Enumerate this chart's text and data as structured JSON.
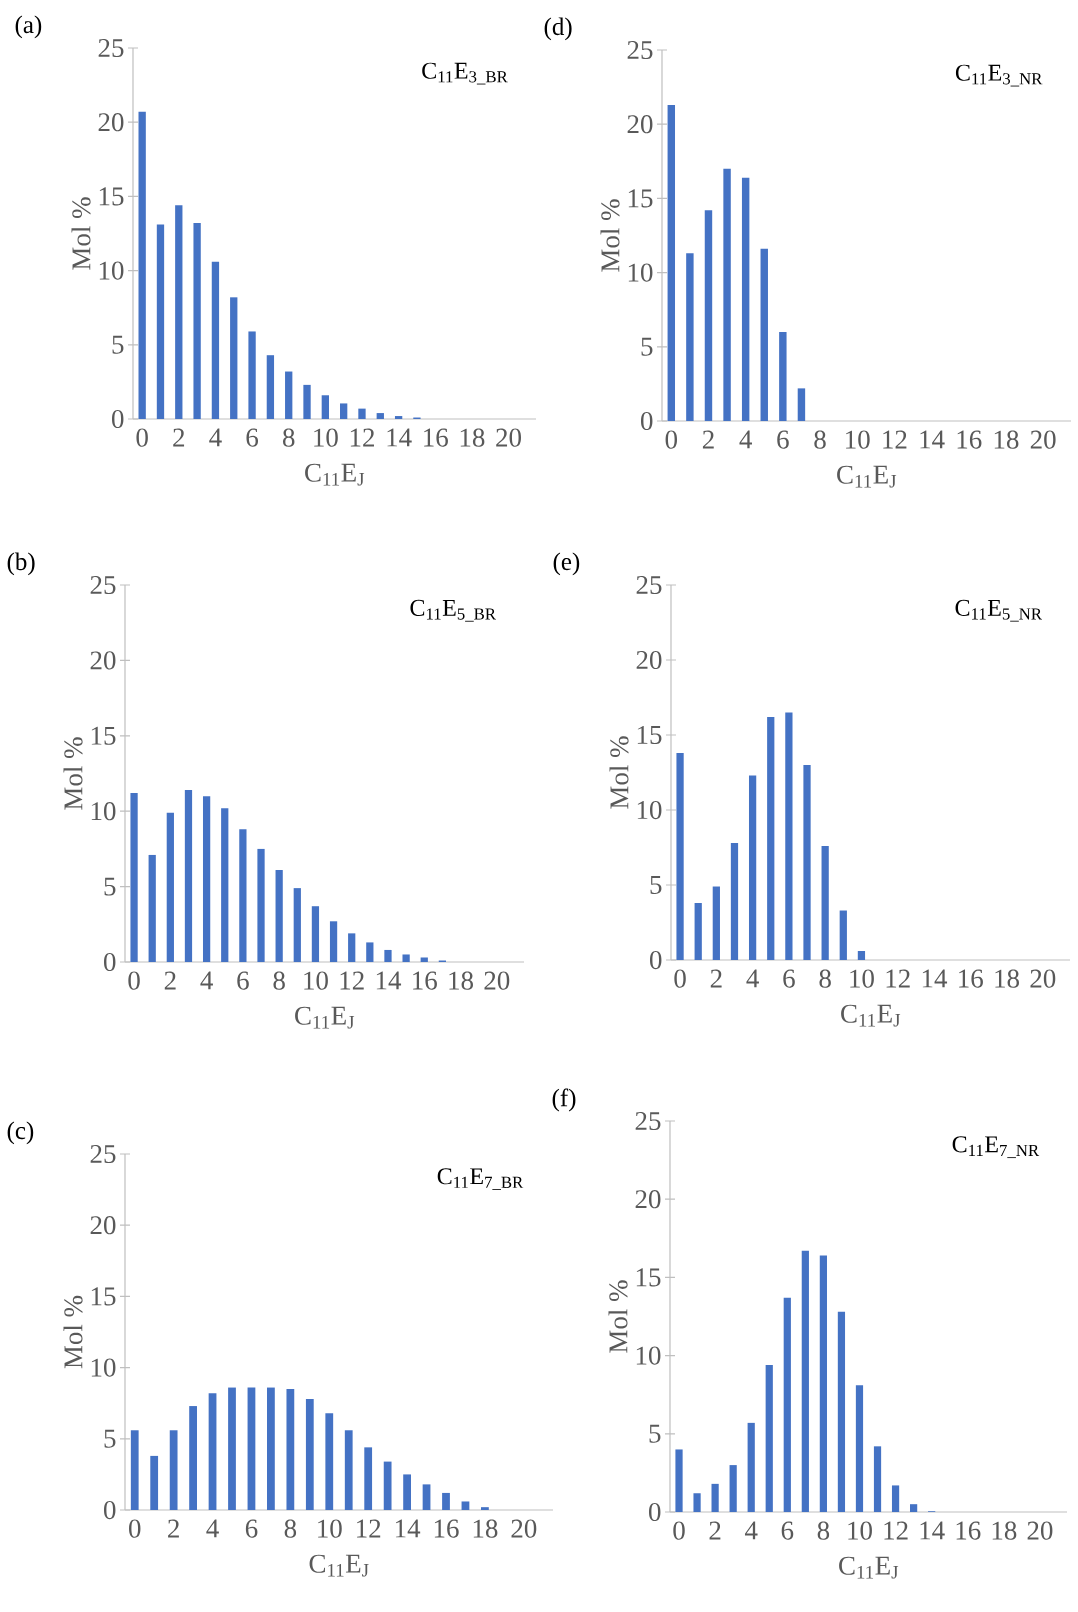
{
  "chart_data": [
    {
      "type": "bar",
      "title": "C$_{11}$E$_{3_BR}$",
      "xlabel": "C$_{11}$E$_{J}$",
      "ylabel": "Mol %",
      "annotations": [
        "(a)"
      ],
      "color": "#4472c4",
      "categories": [
        "0",
        null,
        "2",
        null,
        "4",
        null,
        "6",
        null,
        "8",
        null,
        "10",
        null,
        "12",
        null,
        "14",
        null,
        "16",
        null,
        "18",
        null,
        "20",
        null
      ],
      "values": [
        20.7,
        13.1,
        14.4,
        13.2,
        10.6,
        8.2,
        5.9,
        4.3,
        3.2,
        2.3,
        1.6,
        1.05,
        0.7,
        0.4,
        0.2,
        0.1,
        0,
        0,
        0,
        0,
        0,
        0
      ],
      "ylim": [
        0,
        25
      ],
      "yticks": [
        0,
        5,
        10,
        15,
        20,
        25
      ]
    },
    {
      "type": "bar",
      "title": "C$_{11}$E$_{3_NR}$",
      "xlabel": "C$_{11}$E$_{J}$",
      "ylabel": "Mol %",
      "annotations": [
        "(d)"
      ],
      "color": "#4472c4",
      "categories": [
        "0",
        null,
        "2",
        null,
        "4",
        null,
        "6",
        null,
        "8",
        null,
        "10",
        null,
        "12",
        null,
        "14",
        null,
        "16",
        null,
        "18",
        null,
        "20",
        null
      ],
      "values": [
        21.3,
        11.3,
        14.2,
        17.0,
        16.4,
        11.6,
        6.0,
        2.2,
        0,
        0,
        0,
        0,
        0,
        0,
        0,
        0,
        0,
        0,
        0,
        0,
        0,
        0
      ],
      "ylim": [
        0,
        25
      ],
      "yticks": [
        0,
        5,
        10,
        15,
        20,
        25
      ]
    },
    {
      "type": "bar",
      "title": "C$_{11}$E$_{5_BR}$",
      "xlabel": "C$_{11}$E$_{J}$",
      "ylabel": "Mol %",
      "annotations": [
        "(b)"
      ],
      "color": "#4472c4",
      "categories": [
        "0",
        null,
        "2",
        null,
        "4",
        null,
        "6",
        null,
        "8",
        null,
        "10",
        null,
        "12",
        null,
        "14",
        null,
        "16",
        null,
        "18",
        null,
        "20",
        null
      ],
      "values": [
        11.2,
        7.1,
        9.9,
        11.4,
        11.0,
        10.2,
        8.8,
        7.5,
        6.1,
        4.9,
        3.7,
        2.7,
        1.9,
        1.3,
        0.8,
        0.5,
        0.3,
        0.1,
        0,
        0,
        0,
        0
      ],
      "ylim": [
        0,
        25
      ],
      "yticks": [
        0,
        5,
        10,
        15,
        20,
        25
      ]
    },
    {
      "type": "bar",
      "title": "C$_{11}$E$_{5_NR}$",
      "xlabel": "C$_{11}$E$_{J}$",
      "ylabel": "Mol %",
      "annotations": [
        "(e)"
      ],
      "color": "#4472c4",
      "categories": [
        "0",
        null,
        "2",
        null,
        "4",
        null,
        "6",
        null,
        "8",
        null,
        "10",
        null,
        "12",
        null,
        "14",
        null,
        "16",
        null,
        "18",
        null,
        "20",
        null
      ],
      "values": [
        13.8,
        3.8,
        4.9,
        7.8,
        12.3,
        16.2,
        16.5,
        13.0,
        7.6,
        3.3,
        0.6,
        0,
        0,
        0,
        0,
        0,
        0,
        0,
        0,
        0,
        0,
        0
      ],
      "ylim": [
        0,
        25
      ],
      "yticks": [
        0,
        5,
        10,
        15,
        20,
        25
      ]
    },
    {
      "type": "bar",
      "title": "C$_{11}$E$_{7_BR}$",
      "xlabel": "C$_{11}$E$_{J}$",
      "ylabel": "Mol %",
      "annotations": [
        "(c)"
      ],
      "color": "#4472c4",
      "categories": [
        "0",
        null,
        "2",
        null,
        "4",
        null,
        "6",
        null,
        "8",
        null,
        "10",
        null,
        "12",
        null,
        "14",
        null,
        "16",
        null,
        "18",
        null,
        "20",
        null
      ],
      "values": [
        5.6,
        3.8,
        5.6,
        7.3,
        8.2,
        8.6,
        8.6,
        8.6,
        8.5,
        7.8,
        6.8,
        5.6,
        4.4,
        3.4,
        2.5,
        1.8,
        1.2,
        0.6,
        0.2,
        0,
        0,
        0
      ],
      "ylim": [
        0,
        25
      ],
      "yticks": [
        0,
        5,
        10,
        15,
        20,
        25
      ]
    },
    {
      "type": "bar",
      "title": "C$_{11}$E$_{7_NR}$",
      "xlabel": "C$_{11}$E$_{J}$",
      "ylabel": "Mol %",
      "annotations": [
        "(f)"
      ],
      "color": "#4472c4",
      "categories": [
        "0",
        null,
        "2",
        null,
        "4",
        null,
        "6",
        null,
        "8",
        null,
        "10",
        null,
        "12",
        null,
        "14",
        null,
        "16",
        null,
        "18",
        null,
        "20",
        null
      ],
      "values": [
        4.0,
        1.2,
        1.8,
        3.0,
        5.7,
        9.4,
        13.7,
        16.7,
        16.4,
        12.8,
        8.1,
        4.2,
        1.7,
        0.5,
        0.05,
        0,
        0,
        0,
        0,
        0,
        0,
        0
      ],
      "ylim": [
        0,
        25
      ],
      "yticks": [
        0,
        5,
        10,
        15,
        20,
        25
      ]
    }
  ]
}
